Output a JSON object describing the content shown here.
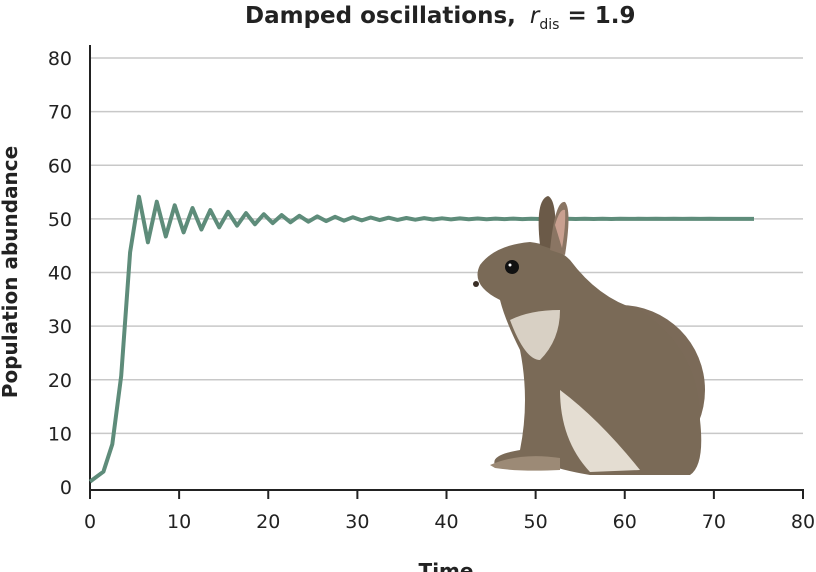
{
  "chart_data": {
    "type": "line",
    "title_main": "Damped oscillations,",
    "title_symbol": "r",
    "title_subscript": "dis",
    "title_value": "= 1.9",
    "xlabel": "Time",
    "ylabel": "Population abundance",
    "xlim": [
      0,
      80
    ],
    "ylim": [
      0,
      80
    ],
    "xticks": [
      "0",
      "10",
      "20",
      "30",
      "40",
      "50",
      "60",
      "70",
      "80"
    ],
    "yticks": [
      "0",
      "10",
      "20",
      "30",
      "40",
      "50",
      "60",
      "70",
      "80"
    ],
    "grid": "horizontal",
    "line_color": "#5e8c7a",
    "x": [
      0,
      1.5,
      2.5,
      3.5,
      4.5,
      5.5,
      6.5,
      7.5,
      8.5,
      9.5,
      10.5,
      11.5,
      12.5,
      13.5,
      14.5,
      15.5,
      16.5,
      17.5,
      18.5,
      19.5,
      20.5,
      21.5,
      22.5,
      23.5,
      24.5,
      25.5,
      26.5,
      27.5,
      28.5,
      29.5,
      30.5,
      31.5,
      32.5,
      33.5,
      34.5,
      35.5,
      36.5,
      37.5,
      38.5,
      39.5,
      40.5,
      41.5,
      42.5,
      43.5,
      44.5,
      45.5,
      46.5,
      47.5,
      48.5,
      49.5,
      50.5,
      51.5,
      52.5,
      53.5,
      54.5,
      55.5,
      56.5,
      57.5,
      58.5,
      59.5,
      60.5,
      61.5,
      62.5,
      63.5,
      64.5,
      65.5,
      66.5,
      67.5,
      68.5,
      69.5,
      70.5,
      71.5,
      72.5,
      73.5,
      74.5
    ],
    "y": [
      1,
      2.86,
      7.98,
      20.72,
      43.77,
      54.13,
      45.63,
      53.21,
      46.72,
      52.54,
      47.47,
      52.03,
      48.02,
      51.63,
      48.43,
      51.32,
      48.75,
      51.07,
      48.99,
      50.87,
      49.21,
      50.71,
      49.36,
      50.58,
      49.48,
      50.47,
      49.58,
      50.38,
      49.66,
      50.31,
      49.72,
      50.25,
      49.77,
      50.21,
      49.81,
      50.17,
      49.85,
      50.14,
      49.88,
      50.11,
      49.9,
      50.09,
      49.92,
      50.07,
      49.94,
      50.06,
      49.95,
      50.05,
      49.96,
      50.04,
      49.97,
      50.03,
      49.97,
      50.03,
      49.98,
      50.02,
      49.98,
      50.02,
      49.98,
      50.02,
      49.99,
      50.01,
      49.99,
      50.01,
      49.99,
      50.01,
      49.99,
      50.01,
      49.99,
      50.01,
      50,
      50,
      50,
      50,
      50
    ]
  },
  "illustration": "rabbit"
}
